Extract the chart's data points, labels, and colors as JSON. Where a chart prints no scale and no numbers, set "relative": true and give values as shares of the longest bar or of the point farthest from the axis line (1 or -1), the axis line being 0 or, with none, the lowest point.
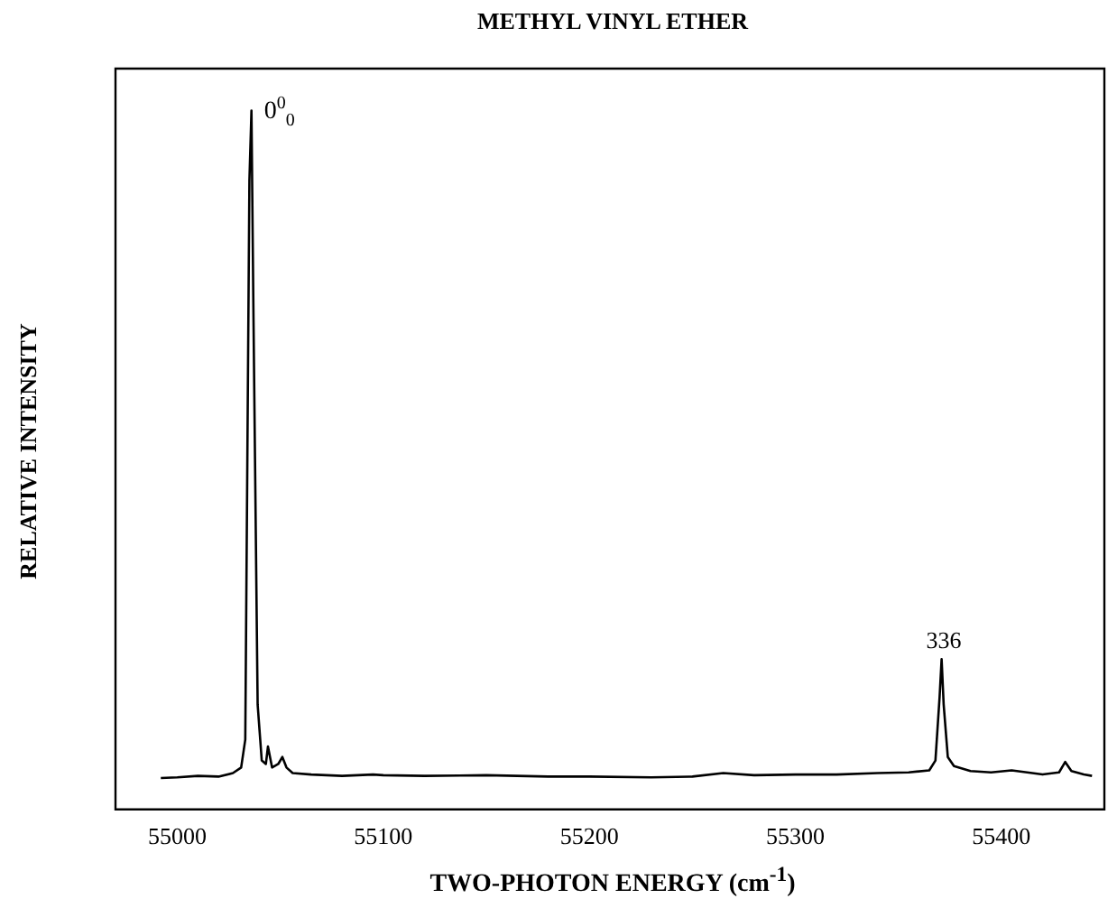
{
  "chart_data": {
    "type": "line",
    "title": "METHYL VINYL ETHER",
    "xlabel": "TWO-PHOTON ENERGY (cm$^{-1}$)",
    "ylabel": "RELATIVE INTENSITY",
    "relative": true,
    "color": "#000000",
    "marker": "none",
    "grid": false,
    "legend": false,
    "xlim": [
      54970,
      55450
    ],
    "xticks": [
      55000,
      55100,
      55200,
      55300,
      55400
    ],
    "x": [
      54992,
      55000,
      55010,
      55020,
      55027,
      55031,
      55033,
      55035,
      55036,
      55037,
      55039,
      55041,
      55043,
      55044,
      55046,
      55049,
      55051,
      55053,
      55056,
      55065,
      55080,
      55095,
      55100,
      55120,
      55150,
      55180,
      55200,
      55230,
      55250,
      55265,
      55280,
      55300,
      55320,
      55340,
      55355,
      55365,
      55368,
      55370,
      55371,
      55372,
      55374,
      55377,
      55385,
      55395,
      55405,
      55420,
      55428,
      55431,
      55434,
      55440,
      55444
    ],
    "values": [
      0.045,
      0.046,
      0.048,
      0.047,
      0.052,
      0.06,
      0.1,
      0.9,
      1.0,
      0.7,
      0.15,
      0.07,
      0.065,
      0.09,
      0.06,
      0.065,
      0.075,
      0.06,
      0.052,
      0.05,
      0.048,
      0.05,
      0.049,
      0.048,
      0.049,
      0.047,
      0.047,
      0.046,
      0.047,
      0.052,
      0.049,
      0.05,
      0.05,
      0.052,
      0.053,
      0.056,
      0.07,
      0.16,
      0.215,
      0.15,
      0.075,
      0.062,
      0.055,
      0.053,
      0.056,
      0.05,
      0.053,
      0.068,
      0.055,
      0.05,
      0.048
    ],
    "annotations": [
      {
        "text": "0$^{0}$$_{0}$",
        "x": 55036,
        "y": 1
      },
      {
        "text": "336",
        "x": 55372,
        "y": 0.215
      }
    ]
  }
}
